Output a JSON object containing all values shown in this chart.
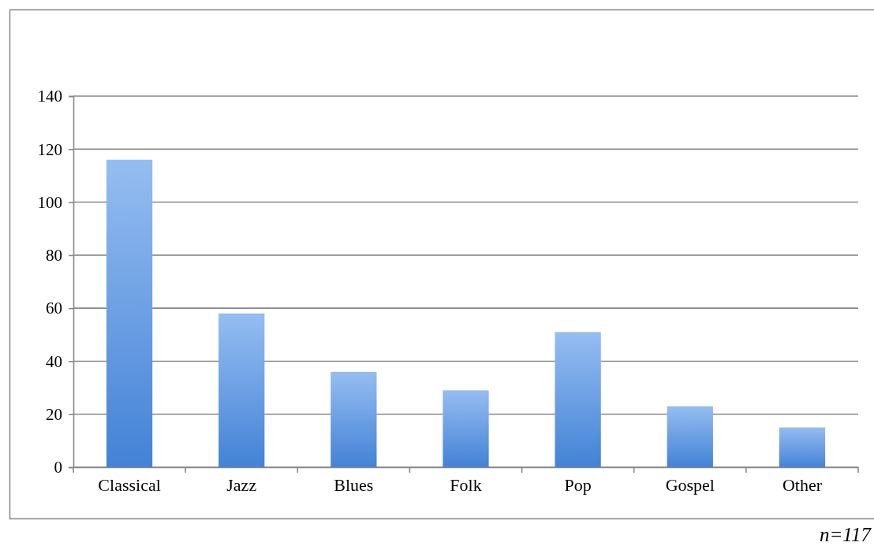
{
  "chart_data": {
    "type": "bar",
    "categories": [
      "Classical",
      "Jazz",
      "Blues",
      "Folk",
      "Pop",
      "Gospel",
      "Other"
    ],
    "values": [
      116,
      58,
      36,
      29,
      51,
      23,
      15
    ],
    "color": "#6ca4ec",
    "ylim": [
      0,
      140
    ],
    "yticks": [
      0,
      20,
      40,
      60,
      80,
      100,
      120,
      140
    ],
    "grid": "y",
    "annotations": [
      "n=117"
    ]
  }
}
